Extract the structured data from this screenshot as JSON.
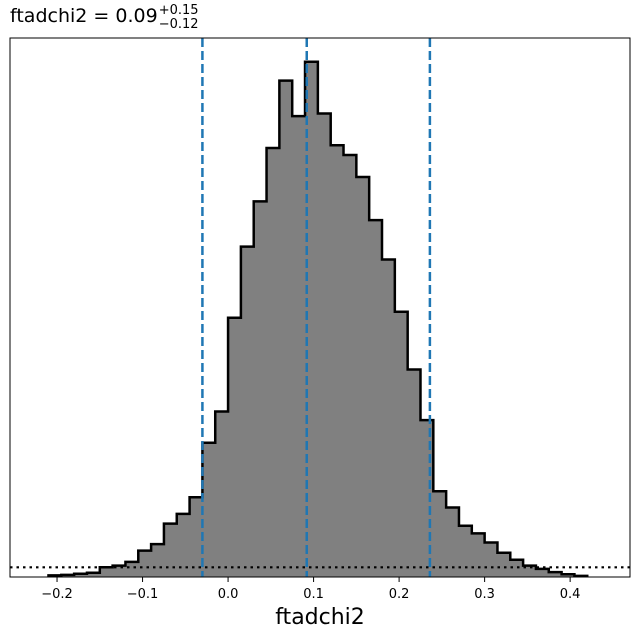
{
  "chart_data": {
    "type": "histogram",
    "title": {
      "param": "ftadchi2",
      "equals": " = ",
      "median": "0.09",
      "upper": "+0.15",
      "lower": "−0.12"
    },
    "xlabel": "ftadchi2",
    "ylabel": "",
    "xlim": [
      -0.255,
      0.47
    ],
    "ylim": [
      0,
      1.0
    ],
    "xticks": [
      -0.2,
      -0.1,
      0.0,
      0.1,
      0.2,
      0.3,
      0.4
    ],
    "xtick_labels": [
      "−0.2",
      "−0.1",
      "0.0",
      "0.1",
      "0.2",
      "0.3",
      "0.4"
    ],
    "fill_color": "#808080",
    "edge_color": "#000000",
    "bin_edges": [
      -0.21,
      -0.195,
      -0.18,
      -0.165,
      -0.15,
      -0.135,
      -0.12,
      -0.105,
      -0.09,
      -0.075,
      -0.06,
      -0.045,
      -0.03,
      -0.015,
      0.0,
      0.015,
      0.03,
      0.045,
      0.06,
      0.075,
      0.09,
      0.105,
      0.12,
      0.135,
      0.15,
      0.165,
      0.18,
      0.195,
      0.21,
      0.225,
      0.24,
      0.255,
      0.27,
      0.285,
      0.3,
      0.315,
      0.33,
      0.345,
      0.36,
      0.375,
      0.39,
      0.405,
      0.42
    ],
    "counts": [
      0.003,
      0.004,
      0.006,
      0.008,
      0.018,
      0.021,
      0.028,
      0.049,
      0.061,
      0.099,
      0.117,
      0.148,
      0.249,
      0.307,
      0.481,
      0.613,
      0.697,
      0.796,
      0.921,
      0.855,
      0.956,
      0.86,
      0.801,
      0.783,
      0.742,
      0.662,
      0.589,
      0.492,
      0.385,
      0.291,
      0.159,
      0.129,
      0.095,
      0.081,
      0.064,
      0.045,
      0.032,
      0.021,
      0.015,
      0.009,
      0.005,
      0.002
    ],
    "vlines": [
      {
        "x": -0.03,
        "style": "dashed",
        "color": "#1f77b4"
      },
      {
        "x": 0.092,
        "style": "dashed",
        "color": "#1f77b4"
      },
      {
        "x": 0.236,
        "style": "dashed",
        "color": "#1f77b4"
      }
    ],
    "prior_line": {
      "x": [
        -0.255,
        0.47
      ],
      "y": [
        0.018,
        0.018
      ],
      "style": "dotted",
      "color": "#000000"
    }
  }
}
